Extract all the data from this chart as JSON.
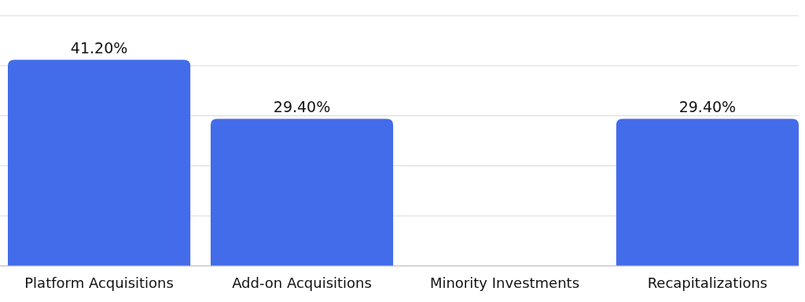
{
  "chart_data": {
    "type": "bar",
    "categories": [
      "Platform Acquisitions",
      "Add-on Acquisitions",
      "Minority Investments",
      "Recapitalizations"
    ],
    "values": [
      41.2,
      29.4,
      0,
      29.4
    ],
    "value_labels": [
      "41.20%",
      "29.40%",
      null,
      "29.40%"
    ],
    "color": "#436cea",
    "ylim": [
      0,
      50
    ],
    "yticks": [
      {
        "value": 0,
        "label": null
      },
      {
        "value": 10,
        "label": null
      },
      {
        "value": 20,
        "label": null
      },
      {
        "value": 30,
        "label": null
      },
      {
        "value": 40,
        "label": null
      },
      {
        "value": 50,
        "label": null
      }
    ],
    "grid": "y",
    "tick_labels": "x"
  }
}
